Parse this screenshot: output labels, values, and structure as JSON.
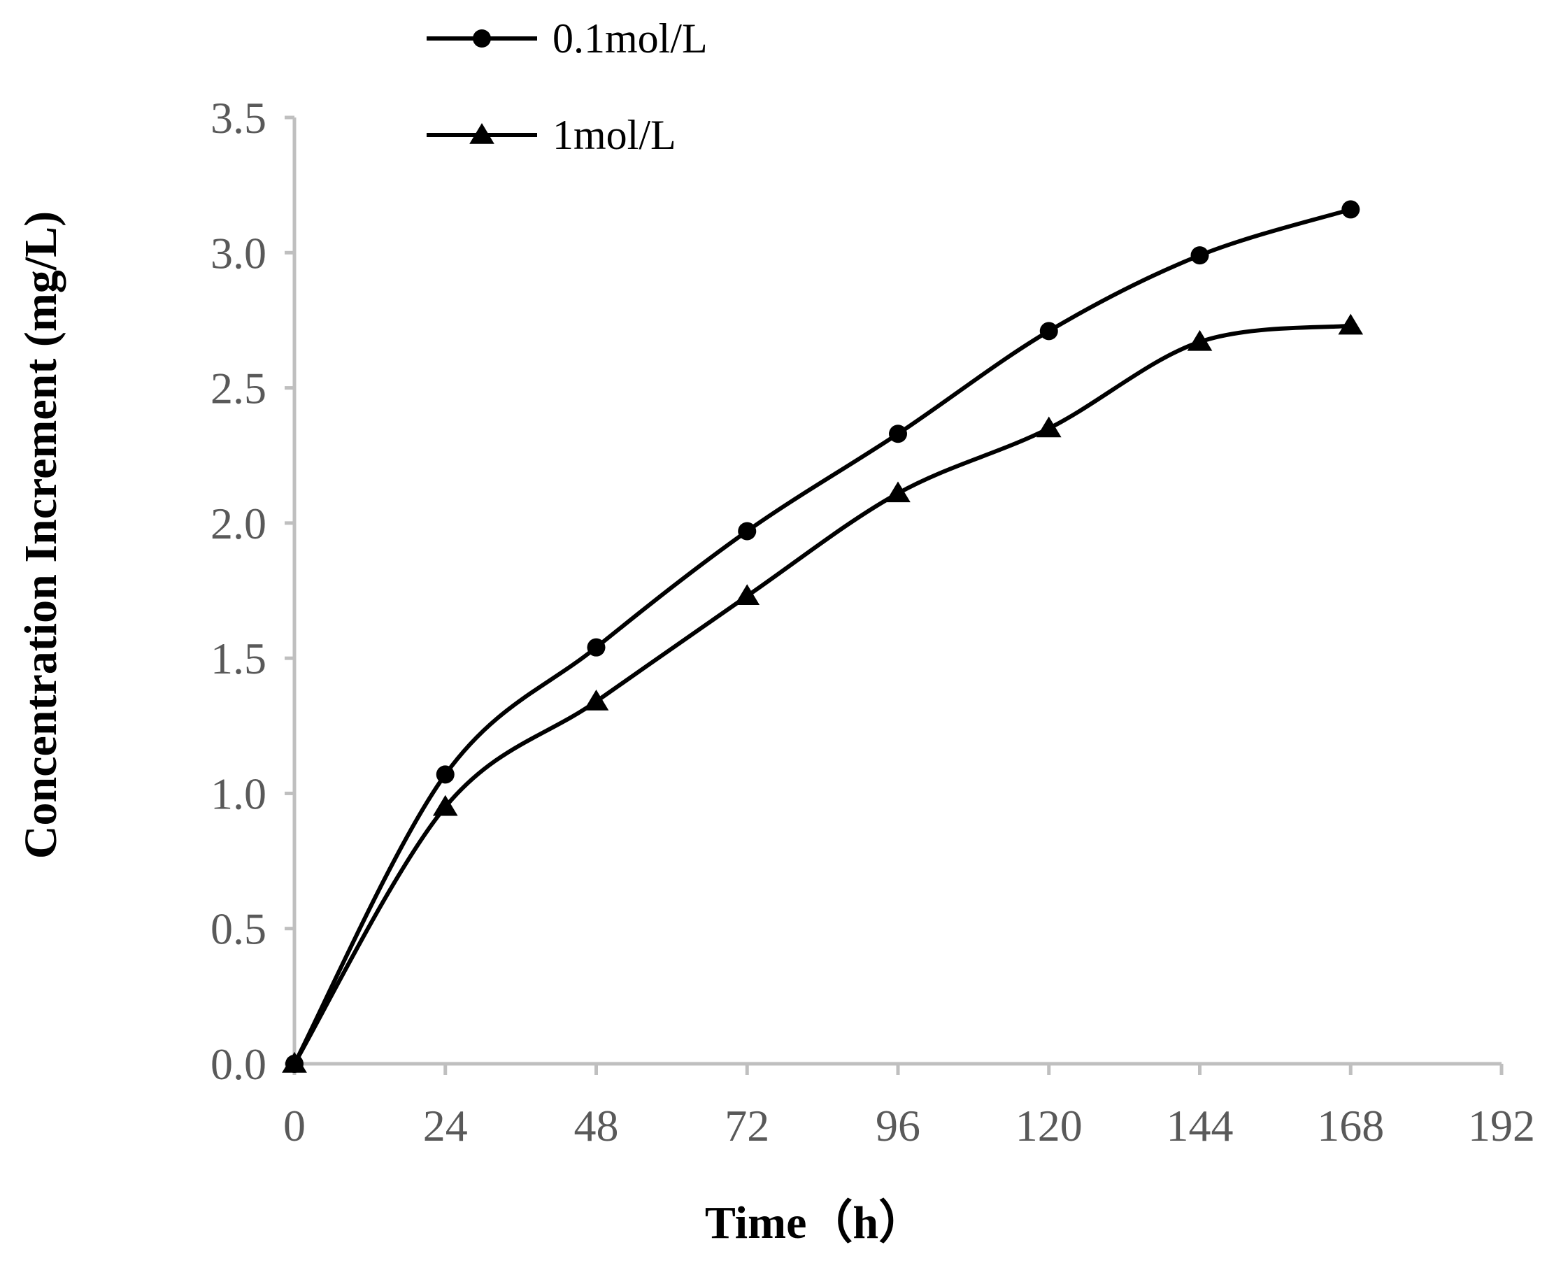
{
  "chart_data": {
    "type": "line",
    "title": "",
    "xlabel": "Time（h）",
    "ylabel": "Concentration Increment (mg/L)",
    "xlim": [
      0,
      192
    ],
    "ylim": [
      0,
      3.5
    ],
    "xticks": [
      0,
      24,
      48,
      72,
      96,
      120,
      144,
      168,
      192
    ],
    "yticks": [
      0,
      0.5,
      1,
      1.5,
      2,
      2.5,
      3,
      3.5
    ],
    "ytick_labels": [
      "0.0",
      "0.5",
      "1.0",
      "1.5",
      "2.0",
      "2.5",
      "3.0",
      "3.5"
    ],
    "xtick_labels": [
      "0",
      "24",
      "48",
      "72",
      "96",
      "120",
      "144",
      "168",
      "192"
    ],
    "grid": false,
    "legend_position": "top-left",
    "x": [
      0,
      24,
      48,
      72,
      96,
      120,
      144,
      168
    ],
    "series": [
      {
        "name": "0.1mol/L",
        "marker": "circle",
        "color": "#000000",
        "values": [
          0,
          1.07,
          1.54,
          1.97,
          2.33,
          2.71,
          2.99,
          3.16
        ]
      },
      {
        "name": "1mol/L",
        "marker": "triangle",
        "color": "#000000",
        "values": [
          0,
          0.95,
          1.34,
          1.73,
          2.11,
          2.35,
          2.67,
          2.73
        ]
      }
    ],
    "axis_color": "#bfbfbf"
  }
}
